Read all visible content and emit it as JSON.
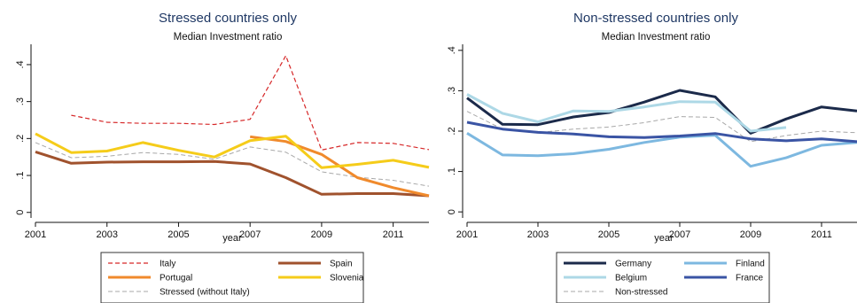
{
  "chart_data": [
    {
      "type": "line",
      "title": "Stressed countries only",
      "subtitle": "Median Investment ratio",
      "xlabel": "year",
      "ylabel": "",
      "x": [
        2001,
        2002,
        2003,
        2004,
        2005,
        2006,
        2007,
        2008,
        2009,
        2010,
        2011,
        2012
      ],
      "xticks": [
        2001,
        2003,
        2005,
        2007,
        2009,
        2011
      ],
      "yticks": [
        0,
        0.1,
        0.2,
        0.3,
        0.4
      ],
      "ytick_labels": [
        "0",
        ".1",
        ".2",
        ".3",
        ".4"
      ],
      "xlim": [
        2001,
        2012
      ],
      "ylim": [
        -0.015,
        0.455
      ],
      "grid": false,
      "legend_position": "bottom",
      "series": [
        {
          "name": "Italy",
          "color": "#d62728",
          "style": "dashed",
          "width": 1.2,
          "values": [
            null,
            0.263,
            0.244,
            0.241,
            0.241,
            0.238,
            0.252,
            0.424,
            0.169,
            0.189,
            0.187,
            0.17
          ]
        },
        {
          "name": "Spain",
          "color": "#a0522d",
          "style": "solid",
          "width": 3,
          "values": [
            0.164,
            0.133,
            0.136,
            0.137,
            0.137,
            0.138,
            0.131,
            0.094,
            0.049,
            0.051,
            0.051,
            0.045
          ]
        },
        {
          "name": "Portugal",
          "color": "#f08a2c",
          "style": "solid",
          "width": 3,
          "values": [
            null,
            null,
            null,
            null,
            null,
            null,
            0.205,
            0.192,
            0.157,
            0.094,
            0.067,
            0.045
          ]
        },
        {
          "name": "Slovenia",
          "color": "#f5cc1a",
          "style": "solid",
          "width": 3,
          "values": [
            0.213,
            0.162,
            0.166,
            0.189,
            0.168,
            0.15,
            0.194,
            0.206,
            0.121,
            0.13,
            0.141,
            0.122
          ]
        },
        {
          "name": "Stressed (without Italy)",
          "color": "#a8a8a8",
          "style": "dashed",
          "width": 1,
          "values": [
            0.189,
            0.148,
            0.152,
            0.162,
            0.157,
            0.144,
            0.177,
            0.163,
            0.11,
            0.095,
            0.087,
            0.071
          ]
        }
      ]
    },
    {
      "type": "line",
      "title": "Non-stressed countries only",
      "subtitle": "Median Investment ratio",
      "xlabel": "year",
      "ylabel": "",
      "x": [
        2001,
        2002,
        2003,
        2004,
        2005,
        2006,
        2007,
        2008,
        2009,
        2010,
        2011,
        2012
      ],
      "xticks": [
        2001,
        2003,
        2005,
        2007,
        2009,
        2011
      ],
      "yticks": [
        0,
        0.1,
        0.2,
        0.3,
        0.4
      ],
      "ytick_labels": [
        "0",
        ".1",
        ".2",
        ".3",
        ".4"
      ],
      "xlim": [
        2001,
        2012
      ],
      "ylim": [
        -0.015,
        0.415
      ],
      "grid": false,
      "legend_position": "bottom",
      "series": [
        {
          "name": "Germany",
          "color": "#1b2a4a",
          "style": "solid",
          "width": 3,
          "values": [
            0.282,
            0.217,
            0.216,
            0.235,
            0.246,
            0.272,
            0.301,
            0.285,
            0.195,
            0.23,
            0.26,
            0.25
          ]
        },
        {
          "name": "Finland",
          "color": "#7db8e0",
          "style": "solid",
          "width": 3,
          "values": [
            0.195,
            0.141,
            0.139,
            0.144,
            0.155,
            0.172,
            0.185,
            0.19,
            0.113,
            0.134,
            0.165,
            0.172
          ]
        },
        {
          "name": "Belgium",
          "color": "#add8e6",
          "style": "solid",
          "width": 3,
          "values": [
            0.291,
            0.244,
            0.223,
            0.25,
            0.249,
            0.26,
            0.273,
            0.272,
            0.2,
            0.209,
            null,
            null
          ]
        },
        {
          "name": "France",
          "color": "#3a54a4",
          "style": "solid",
          "width": 3,
          "values": [
            0.222,
            0.205,
            0.197,
            0.193,
            0.186,
            0.184,
            0.188,
            0.194,
            0.181,
            0.176,
            0.181,
            0.174
          ]
        },
        {
          "name": "Non-stressed",
          "color": "#a8a8a8",
          "style": "dashed",
          "width": 1,
          "values": [
            0.249,
            0.205,
            0.196,
            0.205,
            0.21,
            0.221,
            0.236,
            0.234,
            0.174,
            0.189,
            0.2,
            0.196
          ]
        }
      ]
    }
  ]
}
